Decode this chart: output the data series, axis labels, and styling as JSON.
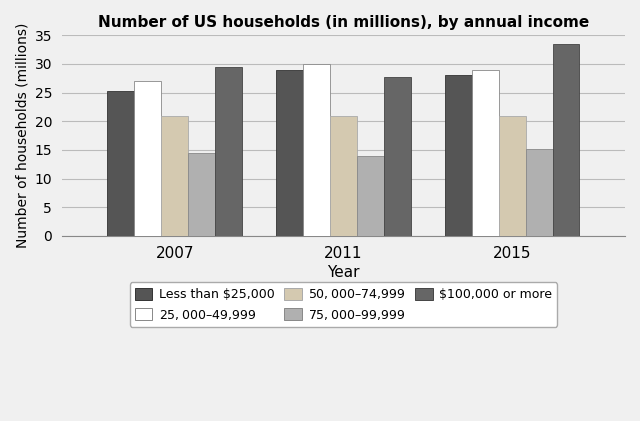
{
  "title": "Number of US households (in millions), by annual income",
  "xlabel": "Year",
  "ylabel": "Number of households (millions)",
  "years": [
    "2007",
    "2011",
    "2015"
  ],
  "categories": [
    "Less than $25,000",
    "$25,000–$49,999",
    "$50,000–$74,999",
    "$75,000–$99,999",
    "$100,000 or more"
  ],
  "values": {
    "Less than $25,000": [
      25.3,
      29.0,
      28.0
    ],
    "$25,000–$49,999": [
      27.0,
      30.0,
      29.0
    ],
    "$50,000–$74,999": [
      21.0,
      21.0,
      21.0
    ],
    "$75,000–$99,999": [
      14.5,
      14.0,
      15.2
    ],
    "$100,000 or more": [
      29.5,
      27.8,
      33.5
    ]
  },
  "colors": [
    "#555555",
    "#ffffff",
    "#d4c9b0",
    "#b0b0b0",
    "#666666"
  ],
  "edge_colors": [
    "#333333",
    "#888888",
    "#aaaaaa",
    "#888888",
    "#444444"
  ],
  "ylim": [
    0,
    35
  ],
  "yticks": [
    0,
    5,
    10,
    15,
    20,
    25,
    30,
    35
  ],
  "bar_width": 0.16,
  "group_centers": [
    1.0,
    2.0,
    3.0
  ],
  "background_color": "#f0f0f0",
  "grid_color": "#bbbbbb",
  "legend_ncol": 3
}
